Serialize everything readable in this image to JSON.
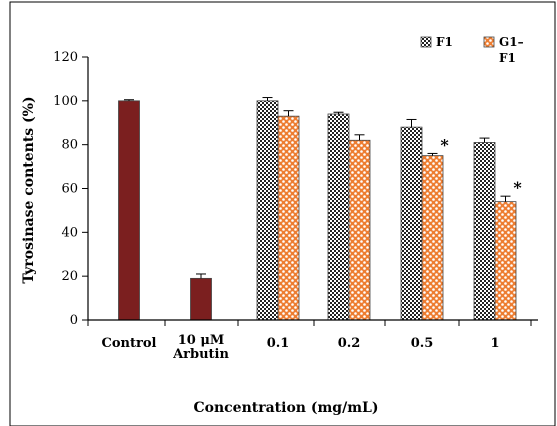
{
  "chart_data": {
    "type": "bar",
    "title": "",
    "xlabel": "Concentration (mg/mL)",
    "ylabel": "Tyrosinase contents (%)",
    "ylim": [
      0,
      120
    ],
    "yticks": [
      "0",
      "20",
      "40",
      "60",
      "80",
      "100",
      "120"
    ],
    "categories": [
      [
        "Control"
      ],
      [
        "10 μM",
        "Arbutin"
      ],
      [
        "0.1"
      ],
      [
        "0.2"
      ],
      [
        "0.5"
      ],
      [
        "1"
      ]
    ],
    "legend": {
      "position": "top-right",
      "entries": [
        {
          "name": "F1",
          "pattern": "checker"
        },
        {
          "name": "G1–F1",
          "pattern": "orange-dots"
        }
      ]
    },
    "series": [
      {
        "key": "control",
        "pattern": "solid-maroon",
        "values": [
          100,
          19,
          null,
          null,
          null,
          null
        ],
        "errors": [
          0.5,
          2,
          null,
          null,
          null,
          null
        ],
        "annotations": [
          "",
          "",
          "",
          "",
          "",
          ""
        ]
      },
      {
        "key": "f1",
        "name": "F1",
        "pattern": "checker",
        "values": [
          null,
          null,
          100,
          94,
          88,
          81
        ],
        "errors": [
          null,
          null,
          1.5,
          0.8,
          3.5,
          2.0
        ],
        "annotations": [
          "",
          "",
          "",
          "",
          "",
          ""
        ]
      },
      {
        "key": "g1f1",
        "name": "G1–F1",
        "pattern": "orange-dots",
        "values": [
          null,
          null,
          93,
          82,
          75,
          54
        ],
        "errors": [
          null,
          null,
          2.5,
          2.5,
          1.0,
          2.5
        ],
        "annotations": [
          "",
          "",
          "",
          "",
          "*",
          "*"
        ]
      }
    ],
    "colors": {
      "solid_maroon": "#7b1f1f",
      "checker_dark": "#222222",
      "checker_light": "#ffffff",
      "orange": "#ed7d31"
    },
    "grid": false
  }
}
